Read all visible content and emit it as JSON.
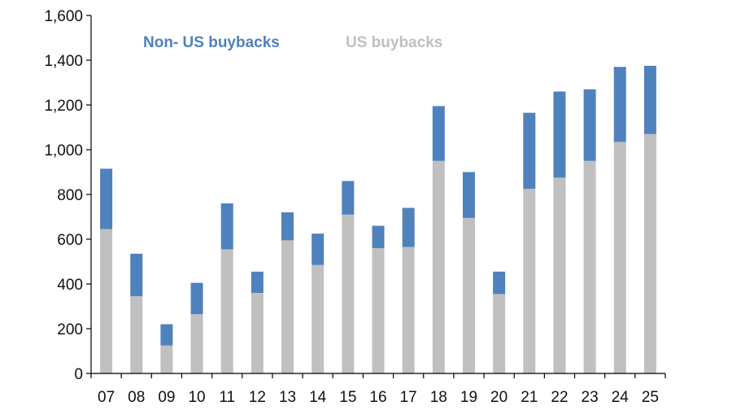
{
  "chart_data": {
    "type": "bar",
    "stacked": true,
    "title": "",
    "xlabel": "",
    "ylabel": "",
    "ylim": [
      0,
      1600
    ],
    "yticks": [
      0,
      200,
      400,
      600,
      800,
      1000,
      1200,
      1400,
      1600
    ],
    "ytick_labels": [
      "0",
      "200",
      "400",
      "600",
      "800",
      "1,000",
      "1,200",
      "1,400",
      "1,600"
    ],
    "grid": false,
    "legend_position": "top",
    "categories": [
      "07",
      "08",
      "09",
      "10",
      "11",
      "12",
      "13",
      "14",
      "15",
      "16",
      "17",
      "18",
      "19",
      "20",
      "21",
      "22",
      "23",
      "24",
      "25"
    ],
    "series": [
      {
        "name": "US buybacks",
        "color": "#c0c0c0",
        "values": [
          645,
          345,
          125,
          265,
          555,
          360,
          595,
          485,
          710,
          560,
          565,
          950,
          695,
          355,
          825,
          875,
          950,
          1035,
          1070
        ]
      },
      {
        "name": "Non- US buybacks",
        "color": "#4f81bd",
        "values": [
          270,
          190,
          95,
          140,
          205,
          95,
          125,
          140,
          150,
          100,
          175,
          245,
          205,
          100,
          340,
          385,
          320,
          335,
          305
        ]
      }
    ]
  }
}
